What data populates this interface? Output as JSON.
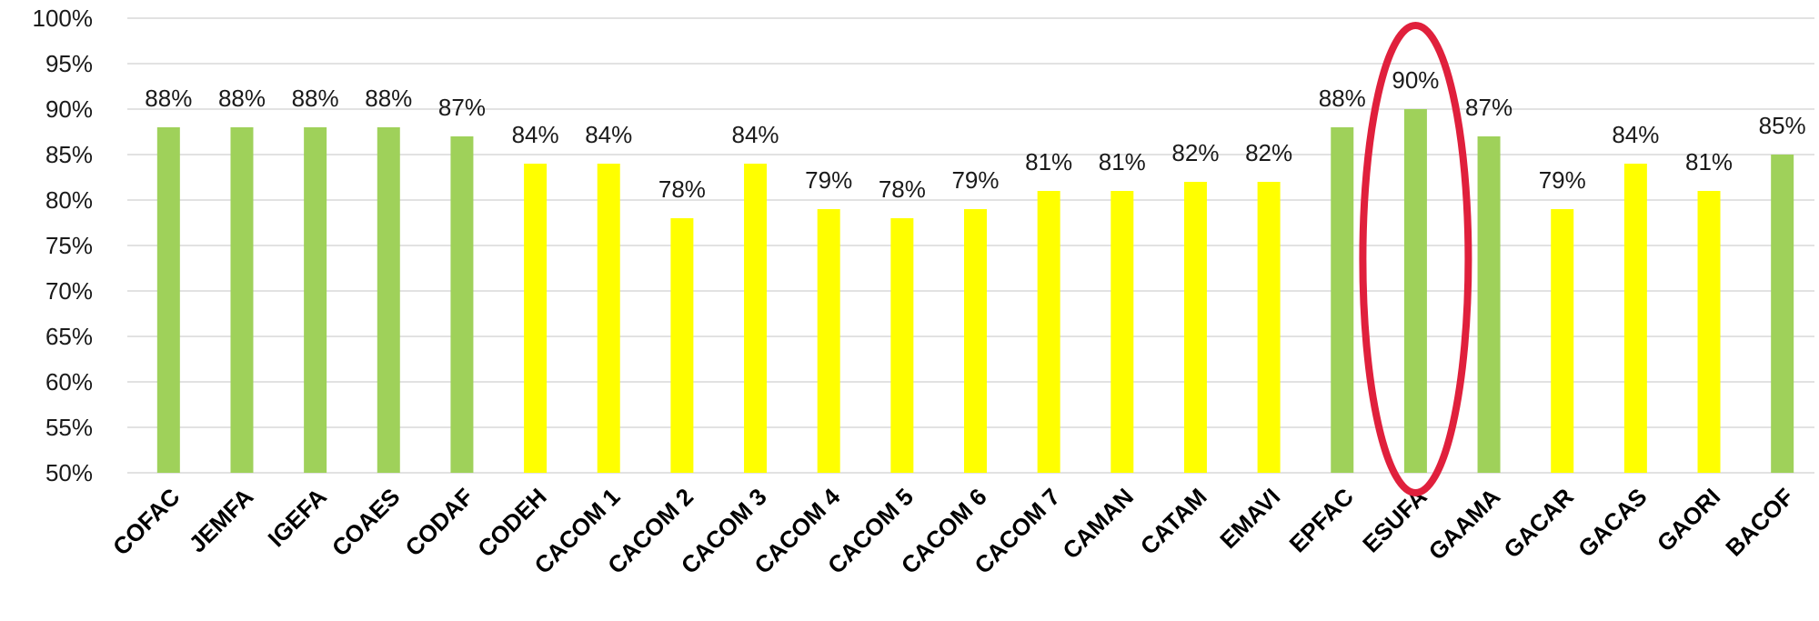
{
  "chart_data": {
    "type": "bar",
    "categories": [
      "COFAC",
      "JEMFA",
      "IGEFA",
      "COAES",
      "CODAF",
      "CODEH",
      "CACOM 1",
      "CACOM 2",
      "CACOM 3",
      "CACOM 4",
      "CACOM 5",
      "CACOM 6",
      "CACOM 7",
      "CAMAN",
      "CATAM",
      "EMAVI",
      "EPFAC",
      "ESUFA",
      "GAAMA",
      "GACAR",
      "GACAS",
      "GAORI",
      "BACOF"
    ],
    "values": [
      88,
      88,
      88,
      88,
      87,
      84,
      84,
      78,
      84,
      79,
      78,
      79,
      81,
      81,
      82,
      82,
      88,
      90,
      87,
      79,
      84,
      81,
      85
    ],
    "data_labels": [
      "88%",
      "88%",
      "88%",
      "88%",
      "87%",
      "84%",
      "84%",
      "78%",
      "84%",
      "79%",
      "78%",
      "79%",
      "81%",
      "81%",
      "82%",
      "82%",
      "88%",
      "90%",
      "87%",
      "79%",
      "84%",
      "81%",
      "85%"
    ],
    "bar_colors": [
      "#9fd15a",
      "#9fd15a",
      "#9fd15a",
      "#9fd15a",
      "#9fd15a",
      "#ffff00",
      "#ffff00",
      "#ffff00",
      "#ffff00",
      "#ffff00",
      "#ffff00",
      "#ffff00",
      "#ffff00",
      "#ffff00",
      "#ffff00",
      "#ffff00",
      "#9fd15a",
      "#9fd15a",
      "#9fd15a",
      "#ffff00",
      "#ffff00",
      "#ffff00",
      "#9fd15a"
    ],
    "colors": {
      "green": "#9fd15a",
      "yellow": "#ffff00",
      "highlight_ring": "#e0203c"
    },
    "yticks": [
      50,
      55,
      60,
      65,
      70,
      75,
      80,
      85,
      90,
      95,
      100
    ],
    "ytick_labels": [
      "50%",
      "55%",
      "60%",
      "65%",
      "70%",
      "75%",
      "80%",
      "85%",
      "90%",
      "95%",
      "100%"
    ],
    "ylim": [
      50,
      100
    ],
    "grid": true,
    "legend": "none",
    "title": "",
    "xlabel": "",
    "ylabel": "",
    "highlight": "ESUFA"
  }
}
